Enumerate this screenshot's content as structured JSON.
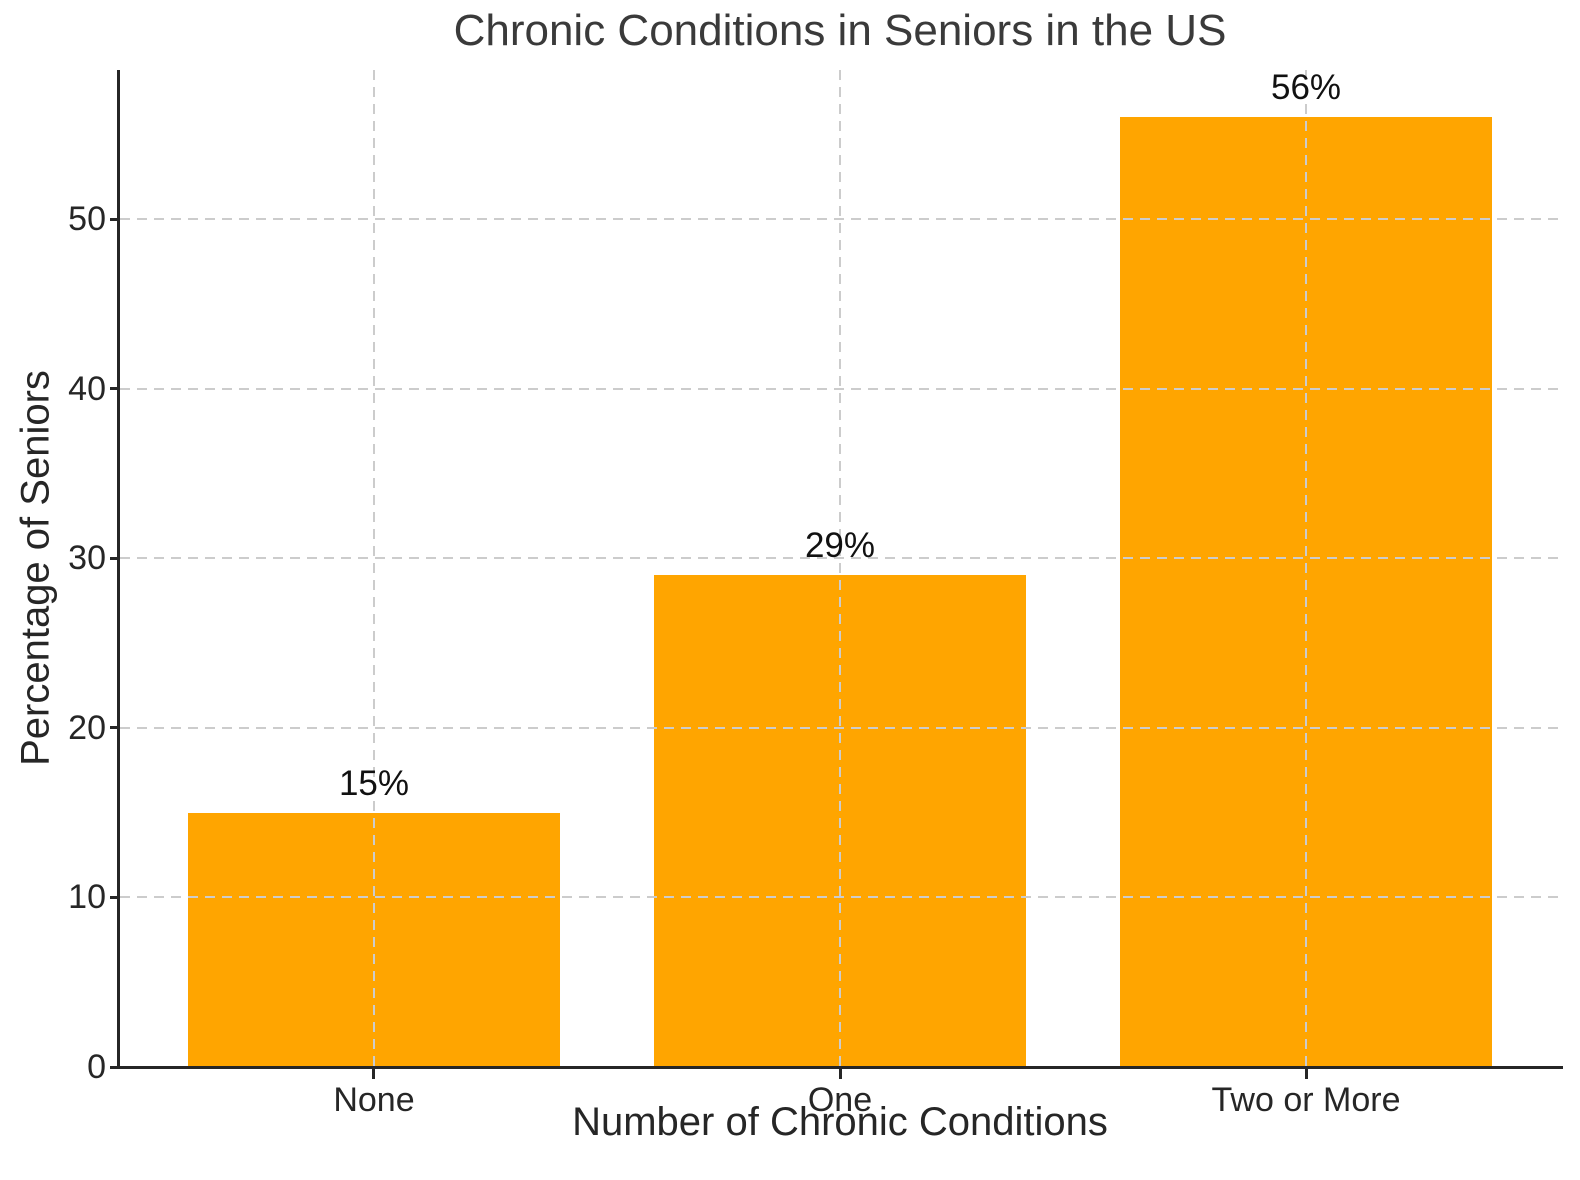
{
  "chart_data": {
    "type": "bar",
    "title": "Chronic Conditions in Seniors in the US",
    "xlabel": "Number of Chronic Conditions",
    "ylabel": "Percentage of Seniors",
    "categories": [
      "None",
      "One",
      "Two or More"
    ],
    "values": [
      15,
      29,
      56
    ],
    "bar_labels": [
      "15%",
      "29%",
      "56%"
    ],
    "yticks": [
      0,
      10,
      20,
      30,
      40,
      50
    ],
    "ylim": [
      0,
      58.8
    ],
    "bar_color": "#FFA500",
    "grid": {
      "style": "dashed",
      "axes": "both",
      "color": "#cccccc",
      "drawn_above_bars": true
    },
    "spine_color": "#262626",
    "text_color": "#262626",
    "title_color": "#3a3a3a",
    "legend": null
  }
}
